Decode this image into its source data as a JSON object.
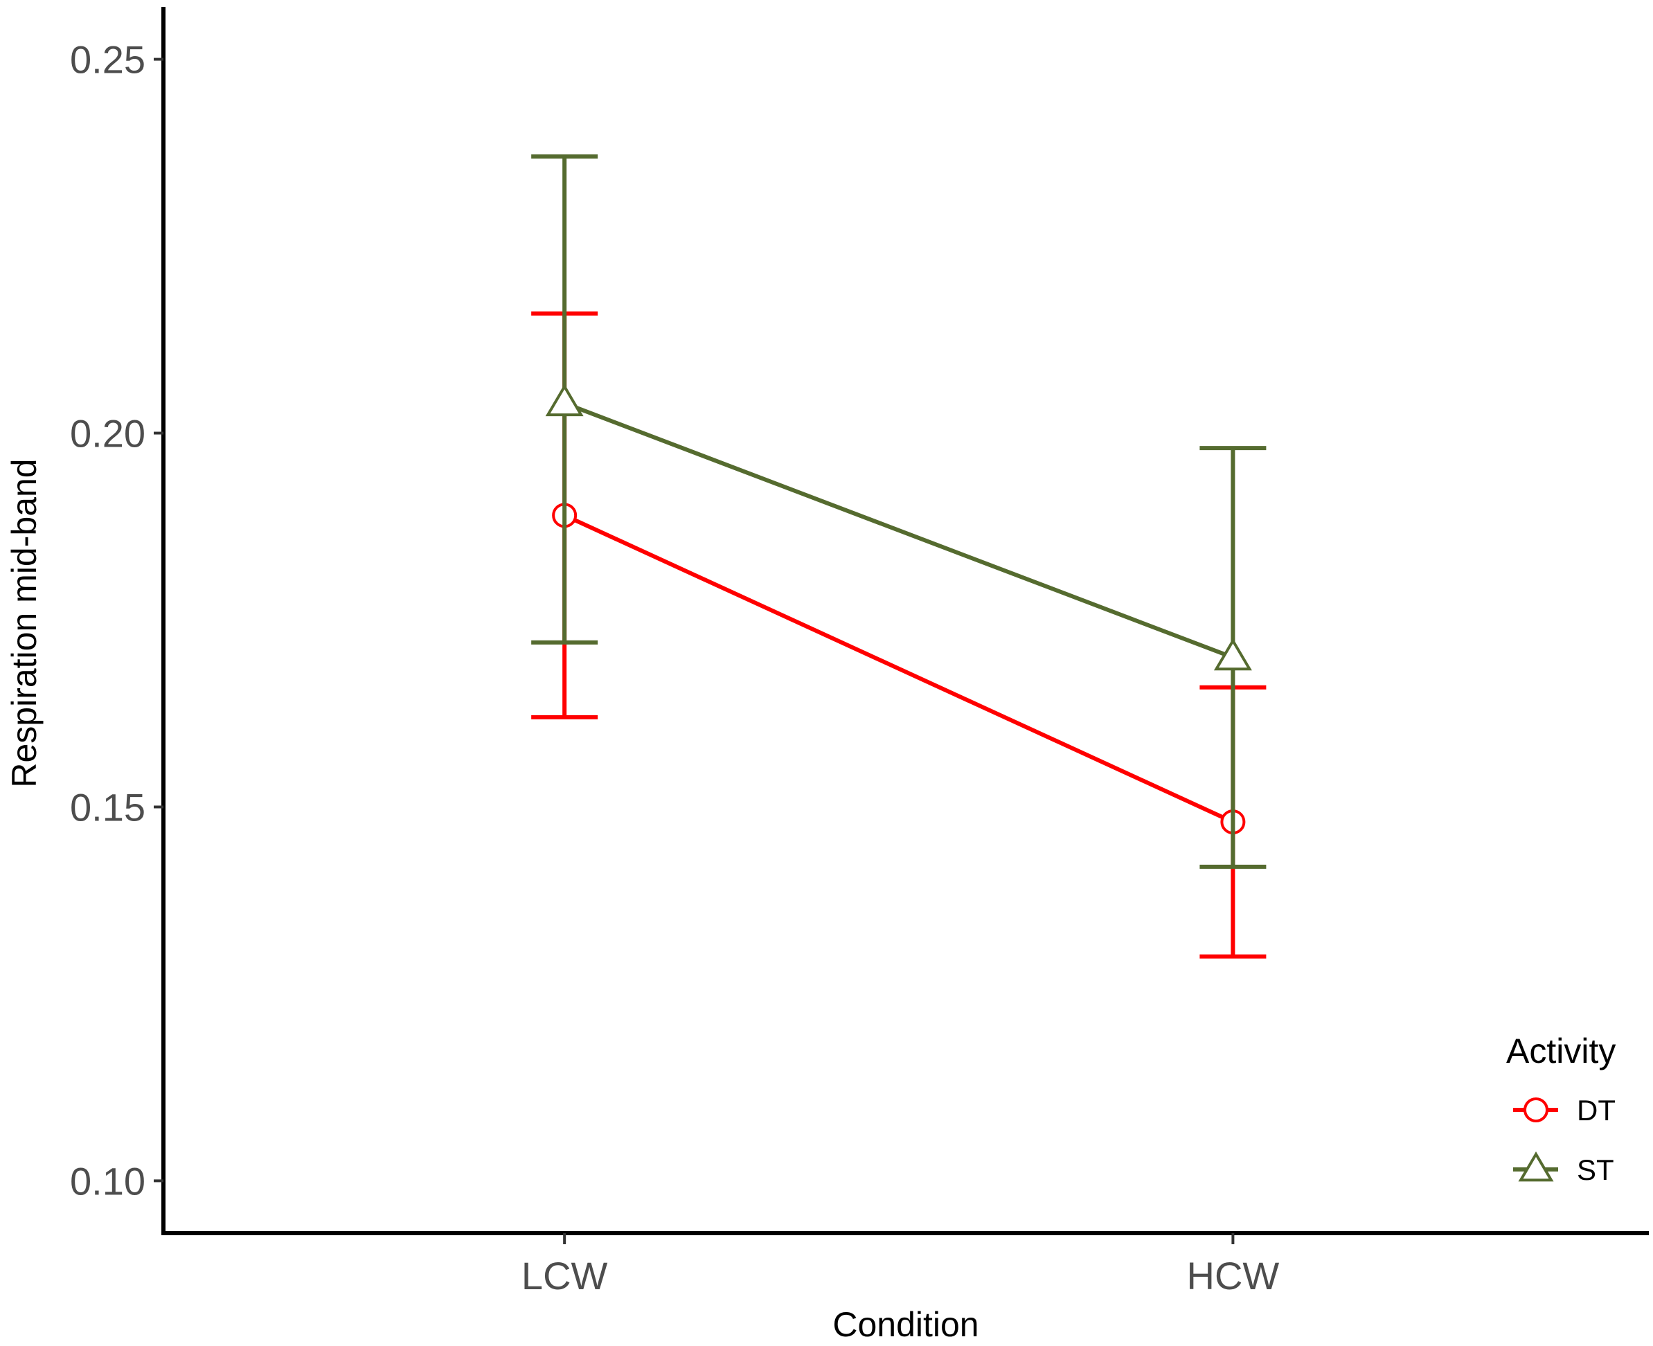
{
  "chart_data": {
    "type": "line",
    "xlabel": "Condition",
    "ylabel": "Respiration mid-band",
    "categories": [
      "LCW",
      "HCW"
    ],
    "ylim": [
      0.093,
      0.257
    ],
    "yticks": [
      "0.10",
      "0.15",
      "0.20",
      "0.25"
    ],
    "grid": false,
    "legend": {
      "title": "Activity",
      "position": "bottom-right"
    },
    "series": [
      {
        "name": "DT",
        "color": "#ff0000",
        "marker": "circle",
        "values": [
          0.189,
          0.148
        ],
        "error_lower": [
          0.162,
          0.13
        ],
        "error_upper": [
          0.216,
          0.166
        ]
      },
      {
        "name": "ST",
        "color": "#556b2f",
        "marker": "triangle",
        "values": [
          0.204,
          0.17
        ],
        "error_lower": [
          0.172,
          0.142
        ],
        "error_upper": [
          0.237,
          0.198
        ]
      }
    ]
  }
}
